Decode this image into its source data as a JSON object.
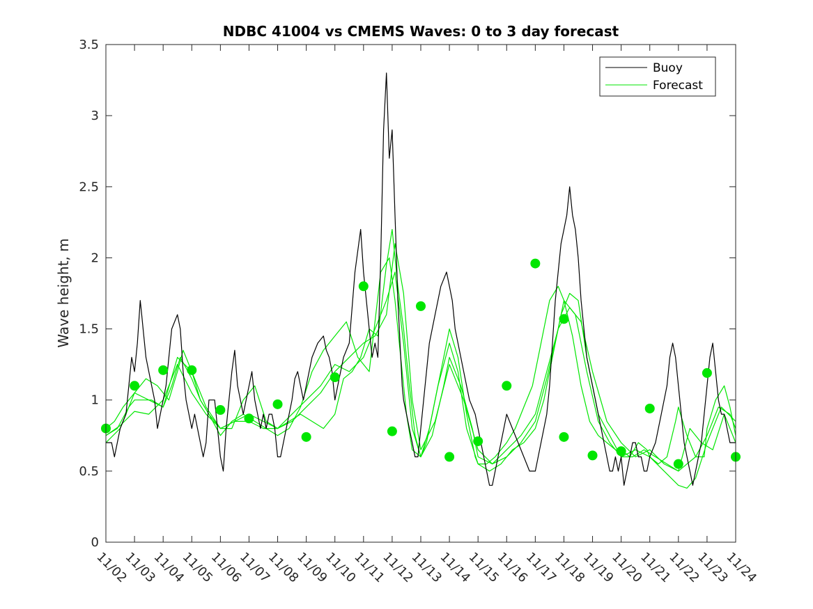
{
  "chart_data": {
    "type": "line",
    "title": "NDBC 41004 vs CMEMS Waves: 0 to 3 day forecast",
    "ylabel": "Wave height, m",
    "xlabel": "",
    "ylim": [
      0,
      3.5
    ],
    "yticks": [
      0,
      0.5,
      1,
      1.5,
      2,
      2.5,
      3,
      3.5
    ],
    "ytick_labels": [
      "0",
      "0.5",
      "1",
      "1.5",
      "2",
      "2.5",
      "3",
      "3.5"
    ],
    "xlim": [
      0,
      22
    ],
    "xtick_labels": [
      "11/02",
      "11/03",
      "11/04",
      "11/05",
      "11/06",
      "11/07",
      "11/08",
      "11/09",
      "11/10",
      "11/11",
      "11/12",
      "11/13",
      "11/14",
      "11/15",
      "11/16",
      "11/17",
      "11/18",
      "11/19",
      "11/20",
      "11/21",
      "11/22",
      "11/23",
      "11/24"
    ],
    "legend": {
      "position": "top-right",
      "entries": [
        "Buoy",
        "Forecast"
      ]
    },
    "colors": {
      "buoy": "#000000",
      "forecast": "#00e600",
      "axis": "#262626"
    },
    "series": [
      {
        "name": "Buoy",
        "x": [
          0,
          0.2,
          0.3,
          0.5,
          0.7,
          0.8,
          0.9,
          1.0,
          1.1,
          1.2,
          1.25,
          1.3,
          1.4,
          1.5,
          1.6,
          1.7,
          1.8,
          1.9,
          2.0,
          2.1,
          2.2,
          2.3,
          2.5,
          2.6,
          2.7,
          2.8,
          2.9,
          3.0,
          3.1,
          3.2,
          3.3,
          3.4,
          3.5,
          3.6,
          3.8,
          4.0,
          4.1,
          4.2,
          4.3,
          4.4,
          4.5,
          4.6,
          4.7,
          4.8,
          4.9,
          5.0,
          5.1,
          5.2,
          5.3,
          5.4,
          5.5,
          5.6,
          5.7,
          5.8,
          5.9,
          6.0,
          6.1,
          6.2,
          6.3,
          6.4,
          6.5,
          6.6,
          6.7,
          6.8,
          6.9,
          7.0,
          7.2,
          7.4,
          7.6,
          7.7,
          7.8,
          7.9,
          8.0,
          8.1,
          8.3,
          8.5,
          8.7,
          8.9,
          9.0,
          9.1,
          9.2,
          9.3,
          9.4,
          9.5,
          9.6,
          9.7,
          9.8,
          9.9,
          10.0,
          10.05,
          10.1,
          10.15,
          10.2,
          10.25,
          10.3,
          10.35,
          10.4,
          10.5,
          10.6,
          10.7,
          10.8,
          10.9,
          11.0,
          11.1,
          11.2,
          11.3,
          11.5,
          11.7,
          11.9,
          12.0,
          12.1,
          12.2,
          12.3,
          12.5,
          12.7,
          12.9,
          13.0,
          13.1,
          13.2,
          13.3,
          13.4,
          13.5,
          13.6,
          13.7,
          13.8,
          13.9,
          14.0,
          14.2,
          14.4,
          14.6,
          14.8,
          15.0,
          15.1,
          15.2,
          15.3,
          15.4,
          15.5,
          15.6,
          15.7,
          15.8,
          15.9,
          16.0,
          16.1,
          16.2,
          16.3,
          16.4,
          16.5,
          16.6,
          16.7,
          16.8,
          16.9,
          17.0,
          17.1,
          17.2,
          17.3,
          17.4,
          17.5,
          17.6,
          17.7,
          17.8,
          17.9,
          18.0,
          18.1,
          18.2,
          18.3,
          18.4,
          18.5,
          18.6,
          18.7,
          18.8,
          18.9,
          19.0,
          19.2,
          19.4,
          19.6,
          19.7,
          19.8,
          19.9,
          20.0,
          20.1,
          20.2,
          20.3,
          20.4,
          20.5,
          20.6,
          20.7,
          20.8,
          20.9,
          21.0,
          21.1,
          21.2,
          21.3,
          21.4,
          21.5,
          21.6,
          21.7,
          21.8,
          21.9,
          22.0
        ],
        "values": [
          0.7,
          0.7,
          0.6,
          0.8,
          0.9,
          1.1,
          1.3,
          1.2,
          1.4,
          1.7,
          1.6,
          1.5,
          1.3,
          1.2,
          1.1,
          1.0,
          0.8,
          0.9,
          1.0,
          1.1,
          1.3,
          1.5,
          1.6,
          1.5,
          1.2,
          1.0,
          0.9,
          0.8,
          0.9,
          0.8,
          0.7,
          0.6,
          0.7,
          1.0,
          1.0,
          0.6,
          0.5,
          0.8,
          1.0,
          1.2,
          1.35,
          1.1,
          1.0,
          0.9,
          1.0,
          1.1,
          1.2,
          1.0,
          0.9,
          0.8,
          0.9,
          0.8,
          0.9,
          0.9,
          0.8,
          0.6,
          0.6,
          0.7,
          0.8,
          0.9,
          1.0,
          1.15,
          1.2,
          1.1,
          1.0,
          1.1,
          1.3,
          1.4,
          1.45,
          1.35,
          1.3,
          1.2,
          1.0,
          1.1,
          1.3,
          1.4,
          1.9,
          2.2,
          1.9,
          1.7,
          1.5,
          1.3,
          1.4,
          1.3,
          2.0,
          2.9,
          3.3,
          2.7,
          2.9,
          2.6,
          2.3,
          2.0,
          1.7,
          1.5,
          1.3,
          1.1,
          1.0,
          0.9,
          0.8,
          0.7,
          0.6,
          0.6,
          0.8,
          1.0,
          1.2,
          1.4,
          1.6,
          1.8,
          1.9,
          1.8,
          1.7,
          1.5,
          1.4,
          1.2,
          1.0,
          0.9,
          0.8,
          0.7,
          0.6,
          0.5,
          0.4,
          0.4,
          0.5,
          0.6,
          0.7,
          0.8,
          0.9,
          0.8,
          0.7,
          0.6,
          0.5,
          0.5,
          0.6,
          0.7,
          0.8,
          0.9,
          1.1,
          1.4,
          1.7,
          1.9,
          2.1,
          2.2,
          2.3,
          2.5,
          2.3,
          2.2,
          2.0,
          1.7,
          1.5,
          1.3,
          1.2,
          1.1,
          1.0,
          0.9,
          0.8,
          0.7,
          0.6,
          0.5,
          0.5,
          0.6,
          0.5,
          0.6,
          0.4,
          0.5,
          0.6,
          0.7,
          0.7,
          0.6,
          0.6,
          0.5,
          0.5,
          0.6,
          0.7,
          0.9,
          1.1,
          1.3,
          1.4,
          1.3,
          1.1,
          0.9,
          0.7,
          0.6,
          0.5,
          0.4,
          0.5,
          0.6,
          0.7,
          0.9,
          1.1,
          1.3,
          1.4,
          1.2,
          1.0,
          0.9,
          0.9,
          0.8,
          0.7,
          0.7,
          0.7
        ]
      },
      {
        "name": "Forecast",
        "x": [
          0,
          0.3,
          0.6,
          1.0,
          1.4,
          1.8,
          2.0,
          2.2,
          2.5,
          2.7,
          3.0,
          3.3,
          3.6,
          4.0,
          4.4,
          4.8,
          5.2,
          5.6,
          6.0,
          6.4,
          6.8,
          7.2,
          7.6,
          8.0,
          8.3,
          8.6,
          8.9,
          9.2,
          9.5,
          9.8,
          10.0,
          10.2,
          10.4,
          10.6,
          10.8,
          11.0,
          11.2,
          11.5,
          11.8,
          12.0,
          12.3,
          12.6,
          12.9,
          13.0,
          13.3,
          13.6,
          14.0,
          14.3,
          14.6,
          14.9,
          15.2,
          15.5,
          15.8,
          16.0,
          16.3,
          16.6,
          16.9,
          17.2,
          17.5,
          17.8,
          18.0,
          18.3,
          18.6,
          18.9,
          19.0,
          19.3,
          19.6,
          19.9,
          20.0,
          20.3,
          20.6,
          20.9,
          21.0,
          21.3,
          21.6,
          21.8,
          22.0
        ],
        "values": [
          0.8,
          0.85,
          0.95,
          1.05,
          1.15,
          1.1,
          1.05,
          1.0,
          1.2,
          1.35,
          1.2,
          1.0,
          0.9,
          0.8,
          0.8,
          1.0,
          1.1,
          0.85,
          0.8,
          0.85,
          0.9,
          0.85,
          0.8,
          0.9,
          1.15,
          1.2,
          1.3,
          1.5,
          1.45,
          1.95,
          2.2,
          1.8,
          1.5,
          1.1,
          0.75,
          0.6,
          0.7,
          1.0,
          1.3,
          1.5,
          1.3,
          0.9,
          0.6,
          0.55,
          0.55,
          0.6,
          0.7,
          0.8,
          0.95,
          1.1,
          1.4,
          1.7,
          1.8,
          1.7,
          1.45,
          1.1,
          0.85,
          0.75,
          0.7,
          0.65,
          0.65,
          0.6,
          0.7,
          0.65,
          0.6,
          0.55,
          0.6,
          0.85,
          0.95,
          0.75,
          0.6,
          0.6,
          0.8,
          1.0,
          1.1,
          0.95,
          0.75
        ]
      },
      {
        "name": "",
        "x": [
          0,
          0.4,
          0.8,
          1.0,
          1.3,
          1.6,
          2.0,
          2.3,
          2.6,
          3.0,
          3.3,
          3.6,
          4.0,
          4.4,
          4.8,
          5.2,
          5.6,
          6.0,
          6.4,
          6.8,
          7.2,
          7.6,
          8.0,
          8.4,
          8.8,
          9.2,
          9.6,
          9.9,
          10.1,
          10.3,
          10.5,
          10.7,
          11.0,
          11.3,
          11.6,
          12.0,
          12.3,
          12.6,
          13.0,
          13.4,
          13.8,
          14.2,
          14.6,
          15.0,
          15.3,
          15.6,
          15.9,
          16.2,
          16.5,
          16.8,
          17.2,
          17.6,
          18.0,
          18.4,
          18.8,
          19.2,
          19.6,
          20.0,
          20.3,
          20.6,
          21.0,
          21.4,
          21.8,
          22.0
        ],
        "values": [
          0.75,
          0.8,
          0.95,
          1.0,
          1.0,
          1.0,
          0.95,
          1.1,
          1.3,
          1.15,
          1.0,
          0.9,
          0.75,
          0.85,
          0.9,
          0.85,
          0.8,
          0.75,
          0.8,
          0.95,
          1.2,
          1.35,
          1.45,
          1.55,
          1.3,
          1.2,
          1.9,
          2.0,
          1.7,
          1.3,
          0.9,
          0.65,
          0.6,
          0.8,
          1.1,
          1.4,
          1.2,
          0.8,
          0.55,
          0.5,
          0.55,
          0.65,
          0.7,
          0.8,
          1.0,
          1.3,
          1.6,
          1.75,
          1.7,
          1.3,
          0.9,
          0.75,
          0.6,
          0.6,
          0.65,
          0.6,
          0.55,
          0.5,
          0.55,
          0.6,
          0.75,
          0.95,
          0.9,
          0.8
        ]
      },
      {
        "name": "",
        "x": [
          0,
          0.5,
          1.0,
          1.5,
          2.0,
          2.5,
          3.0,
          3.5,
          4.0,
          4.5,
          5.0,
          5.5,
          6.0,
          6.5,
          7.0,
          7.5,
          8.0,
          8.5,
          9.0,
          9.5,
          9.8,
          10.1,
          10.4,
          10.7,
          11.0,
          11.4,
          11.8,
          12.0,
          12.4,
          12.8,
          13.0,
          13.5,
          14.0,
          14.5,
          15.0,
          15.4,
          15.8,
          16.0,
          16.4,
          16.8,
          17.2,
          17.6,
          18.0,
          18.5,
          19.0,
          19.5,
          20.0,
          20.3,
          20.6,
          21.0,
          21.5,
          22.0
        ],
        "values": [
          0.75,
          0.82,
          0.92,
          0.9,
          1.0,
          1.25,
          1.05,
          0.9,
          0.8,
          0.85,
          0.85,
          0.8,
          0.8,
          0.9,
          1.0,
          1.1,
          1.25,
          1.2,
          1.3,
          1.55,
          1.7,
          1.9,
          1.4,
          0.8,
          0.6,
          0.75,
          1.1,
          1.3,
          1.1,
          0.8,
          0.6,
          0.55,
          0.65,
          0.75,
          0.9,
          1.2,
          1.5,
          1.7,
          1.6,
          1.2,
          0.85,
          0.7,
          0.6,
          0.65,
          0.6,
          0.5,
          0.4,
          0.38,
          0.45,
          0.7,
          0.95,
          0.85
        ]
      },
      {
        "name": "",
        "x": [
          0,
          0.5,
          1.0,
          1.5,
          2.0,
          2.5,
          3.0,
          3.5,
          4.0,
          4.5,
          5.0,
          5.5,
          6.0,
          6.5,
          7.0,
          7.5,
          8.0,
          8.5,
          9.0,
          9.4,
          9.8,
          10.1,
          10.4,
          10.7,
          11.0,
          11.5,
          12.0,
          12.5,
          13.0,
          13.5,
          14.0,
          14.5,
          15.0,
          15.4,
          15.8,
          16.2,
          16.6,
          17.0,
          17.5,
          18.0,
          18.5,
          19.0,
          19.5,
          20.0,
          20.4,
          20.8,
          21.2,
          21.6,
          22.0
        ],
        "values": [
          0.7,
          0.8,
          1.05,
          1.0,
          0.95,
          1.3,
          1.2,
          0.95,
          0.8,
          0.85,
          0.9,
          0.85,
          0.8,
          0.85,
          0.95,
          1.05,
          1.2,
          1.3,
          1.4,
          1.45,
          1.6,
          2.1,
          1.75,
          1.0,
          0.65,
          0.85,
          1.25,
          1.0,
          0.65,
          0.55,
          0.6,
          0.7,
          0.85,
          1.15,
          1.5,
          1.65,
          1.55,
          1.2,
          0.85,
          0.7,
          0.6,
          0.65,
          0.55,
          0.5,
          0.8,
          0.7,
          0.65,
          0.9,
          0.7
        ]
      }
    ],
    "markers": {
      "x": [
        0,
        1,
        2,
        3,
        4,
        5,
        6,
        7,
        8,
        9,
        10,
        11,
        12,
        13,
        14,
        15,
        16,
        16,
        17,
        18,
        19,
        20,
        21,
        22
      ],
      "values": [
        0.8,
        1.1,
        1.21,
        1.21,
        0.93,
        0.87,
        0.97,
        0.74,
        1.16,
        1.8,
        0.78,
        1.66,
        0.6,
        0.71,
        1.1,
        1.96,
        1.57,
        0.74,
        0.61,
        0.64,
        0.94,
        0.55,
        1.19,
        0.6
      ]
    }
  }
}
